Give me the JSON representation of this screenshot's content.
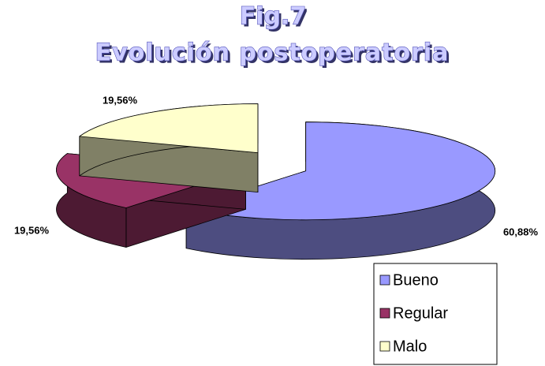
{
  "chart_data": {
    "type": "pie3d",
    "title": "Fig.7",
    "subtitle": "Evolución postoperatoria",
    "categories": [
      "Bueno",
      "Regular",
      "Malo"
    ],
    "series": [
      {
        "name": "Evolución postoperatoria",
        "colors": [
          "#9999ff",
          "#993366",
          "#ffffcc"
        ],
        "values": [
          60.88,
          19.56,
          19.56
        ],
        "value_labels": [
          "60,88%",
          "19,56%",
          "19,56%"
        ]
      }
    ],
    "legend": "bottom-right"
  }
}
